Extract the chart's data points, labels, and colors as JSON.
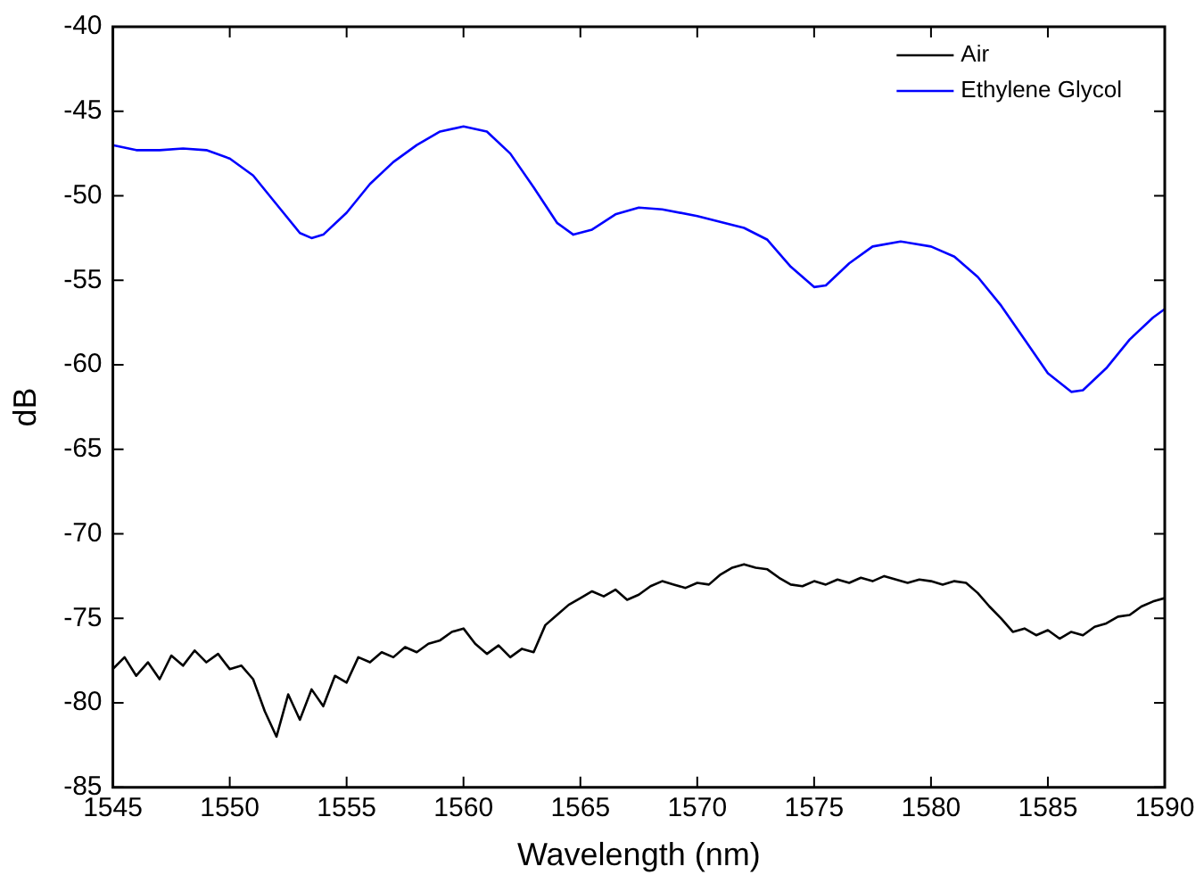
{
  "chart_data": {
    "type": "line",
    "xlabel": "Wavelength (nm)",
    "ylabel": "dB",
    "xlim": [
      1545,
      1590
    ],
    "xticks": [
      1545,
      1550,
      1555,
      1560,
      1565,
      1570,
      1575,
      1580,
      1585,
      1590
    ],
    "ylim": [
      -85,
      -40
    ],
    "yticks": [
      -85,
      -80,
      -75,
      -70,
      -65,
      -60,
      -55,
      -50,
      -45,
      -40
    ],
    "grid": false,
    "legend": "top right",
    "marker": "none",
    "line_style": "solid",
    "series": [
      {
        "name": "Air",
        "color": "#000000",
        "x": [
          1545,
          1545.5,
          1546,
          1546.5,
          1547,
          1547.5,
          1548,
          1548.5,
          1549,
          1549.5,
          1550,
          1550.5,
          1551,
          1551.5,
          1552,
          1552.5,
          1553,
          1553.5,
          1554,
          1554.5,
          1555,
          1555.5,
          1556,
          1556.5,
          1557,
          1557.5,
          1558,
          1558.5,
          1559,
          1559.5,
          1560,
          1560.5,
          1561,
          1561.5,
          1562,
          1562.5,
          1563,
          1563.5,
          1564,
          1564.5,
          1565,
          1565.5,
          1566,
          1566.5,
          1567,
          1567.5,
          1568,
          1568.5,
          1569,
          1569.5,
          1570,
          1570.5,
          1571,
          1571.5,
          1572,
          1572.5,
          1573,
          1573.5,
          1574,
          1574.5,
          1575,
          1575.5,
          1576,
          1576.5,
          1577,
          1577.5,
          1578,
          1578.5,
          1579,
          1579.5,
          1580,
          1580.5,
          1581,
          1581.5,
          1582,
          1582.5,
          1583,
          1583.5,
          1584,
          1584.5,
          1585,
          1585.5,
          1586,
          1586.5,
          1587,
          1587.5,
          1588,
          1588.5,
          1589,
          1589.5,
          1590
        ],
        "values": [
          -78.0,
          -77.3,
          -78.4,
          -77.6,
          -78.6,
          -77.2,
          -77.8,
          -76.9,
          -77.6,
          -77.1,
          -78.0,
          -77.8,
          -78.6,
          -80.5,
          -82.0,
          -79.5,
          -81.0,
          -79.2,
          -80.2,
          -78.4,
          -78.8,
          -77.3,
          -77.6,
          -77.0,
          -77.3,
          -76.7,
          -77.0,
          -76.5,
          -76.3,
          -75.8,
          -75.6,
          -76.5,
          -77.1,
          -76.6,
          -77.3,
          -76.8,
          -77.0,
          -75.4,
          -74.8,
          -74.2,
          -73.8,
          -73.4,
          -73.7,
          -73.3,
          -73.9,
          -73.6,
          -73.1,
          -72.8,
          -73.0,
          -73.2,
          -72.9,
          -73.0,
          -72.4,
          -72.0,
          -71.8,
          -72.0,
          -72.1,
          -72.6,
          -73.0,
          -73.1,
          -72.8,
          -73.0,
          -72.7,
          -72.9,
          -72.6,
          -72.8,
          -72.5,
          -72.7,
          -72.9,
          -72.7,
          -72.8,
          -73.0,
          -72.8,
          -72.9,
          -73.5,
          -74.3,
          -75.0,
          -75.8,
          -75.6,
          -76.0,
          -75.7,
          -76.2,
          -75.8,
          -76.0,
          -75.5,
          -75.3,
          -74.9,
          -74.8,
          -74.3,
          -74.0,
          -73.8
        ]
      },
      {
        "name": "Ethylene Glycol",
        "color": "#0000ff",
        "x": [
          1545,
          1546,
          1547,
          1548,
          1549,
          1550,
          1551,
          1552,
          1553,
          1553.5,
          1554,
          1555,
          1556,
          1557,
          1558,
          1559,
          1560,
          1561,
          1562,
          1563,
          1564,
          1564.7,
          1565.5,
          1566.5,
          1567.5,
          1568.5,
          1570,
          1572,
          1573,
          1574,
          1575,
          1575.5,
          1576.5,
          1577.5,
          1578.7,
          1580,
          1581,
          1582,
          1583,
          1584,
          1585,
          1586,
          1586.5,
          1587.5,
          1588.5,
          1589.5,
          1590
        ],
        "values": [
          -47.0,
          -47.3,
          -47.3,
          -47.2,
          -47.3,
          -47.8,
          -48.8,
          -50.5,
          -52.2,
          -52.5,
          -52.3,
          -51.0,
          -49.3,
          -48.0,
          -47.0,
          -46.2,
          -45.9,
          -46.2,
          -47.5,
          -49.5,
          -51.6,
          -52.3,
          -52.0,
          -51.1,
          -50.7,
          -50.8,
          -51.2,
          -51.9,
          -52.6,
          -54.2,
          -55.4,
          -55.3,
          -54.0,
          -53.0,
          -52.7,
          -53.0,
          -53.6,
          -54.8,
          -56.5,
          -58.5,
          -60.5,
          -61.6,
          -61.5,
          -60.2,
          -58.5,
          -57.2,
          -56.7
        ]
      }
    ]
  }
}
